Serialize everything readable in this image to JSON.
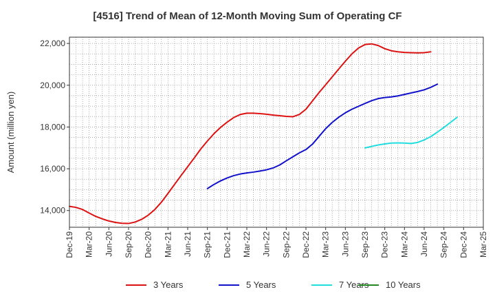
{
  "chart_data": {
    "type": "line",
    "title": "[4516]  Trend of Mean of 12-Month Moving Sum of Operating CF",
    "xlabel": "",
    "ylabel": "Amount (million yen)",
    "ylim": [
      13200,
      22300
    ],
    "yticks": [
      14000,
      16000,
      18000,
      20000,
      22000
    ],
    "ytick_labels": [
      "14,000",
      "16,000",
      "18,000",
      "20,000",
      "22,000"
    ],
    "x_tick_labels": [
      "Dec-19",
      "Mar-20",
      "Jun-20",
      "Sep-20",
      "Dec-20",
      "Mar-21",
      "Jun-21",
      "Sep-21",
      "Dec-21",
      "Mar-22",
      "Jun-22",
      "Sep-22",
      "Dec-22",
      "Mar-23",
      "Jun-23",
      "Sep-23",
      "Dec-23",
      "Mar-24",
      "Jun-24",
      "Sep-24",
      "Dec-24",
      "Mar-25"
    ],
    "grid": true,
    "legend_position": "bottom",
    "series": [
      {
        "name": "3 Years",
        "color": "#dd1111",
        "start_index": 0,
        "values": [
          14200,
          14150,
          14050,
          13880,
          13720,
          13600,
          13500,
          13430,
          13390,
          13380,
          13450,
          13580,
          13780,
          14050,
          14400,
          14820,
          15250,
          15680,
          16100,
          16520,
          16950,
          17330,
          17680,
          17980,
          18230,
          18450,
          18600,
          18660,
          18660,
          18640,
          18610,
          18570,
          18540,
          18510,
          18490,
          18600,
          18850,
          19250,
          19650,
          20020,
          20400,
          20780,
          21150,
          21500,
          21780,
          21950,
          21980,
          21900,
          21750,
          21650,
          21600,
          21570,
          21560,
          21550,
          21560,
          21600
        ]
      },
      {
        "name": "5 Years",
        "color": "#1111cc",
        "start_index": 21,
        "values": [
          15050,
          15250,
          15420,
          15560,
          15670,
          15750,
          15800,
          15840,
          15890,
          15950,
          16040,
          16180,
          16380,
          16570,
          16760,
          16920,
          17180,
          17550,
          17920,
          18220,
          18470,
          18680,
          18850,
          18990,
          19130,
          19260,
          19360,
          19410,
          19440,
          19490,
          19560,
          19630,
          19700,
          19780,
          19900,
          20050
        ]
      },
      {
        "name": "7 Years",
        "color": "#22dddd",
        "start_index": 45,
        "values": [
          17000,
          17070,
          17140,
          17190,
          17230,
          17240,
          17230,
          17210,
          17260,
          17380,
          17540,
          17750,
          17980,
          18220,
          18460
        ]
      },
      {
        "name": "10 Years",
        "color": "#228822",
        "start_index": 0,
        "values": []
      }
    ]
  }
}
